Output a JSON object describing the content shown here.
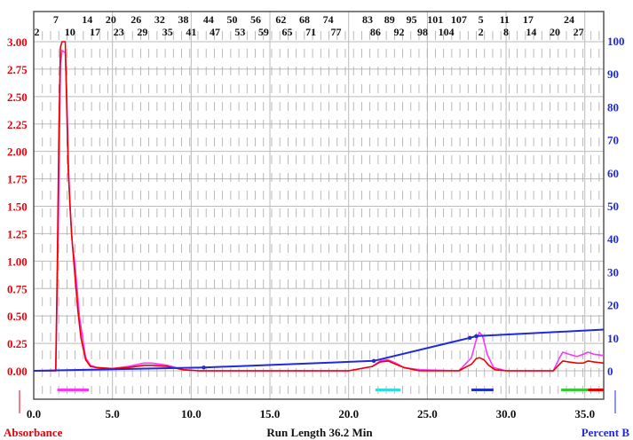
{
  "chart_data": {
    "type": "line",
    "title": "",
    "xlabel": "Run Length 36.2 Min",
    "ylabel_left": "Absorbance",
    "ylabel_right": "Percent B",
    "xlim": [
      0,
      36.2
    ],
    "ylim_left": [
      -0.25,
      3.0
    ],
    "ylim_right": [
      -10.5,
      100
    ],
    "x_ticks": [
      0.0,
      5.0,
      10.0,
      15.0,
      20.0,
      25.0,
      30.0,
      35.0
    ],
    "x_tick_labels": [
      "0.0",
      "5.0",
      "10.0",
      "15.0",
      "20.0",
      "25.0",
      "30.0",
      "35.0"
    ],
    "y_left_ticks": [
      0.0,
      0.25,
      0.5,
      0.75,
      1.0,
      1.25,
      1.5,
      1.75,
      2.0,
      2.25,
      2.5,
      2.75,
      3.0
    ],
    "y_left_tick_labels": [
      "0.00",
      "0.25",
      "0.50",
      "0.75",
      "1.00",
      "1.25",
      "1.50",
      "1.75",
      "2.00",
      "2.25",
      "2.50",
      "2.75",
      "3.00"
    ],
    "y_right_ticks": [
      0,
      10,
      20,
      30,
      40,
      50,
      60,
      70,
      80,
      90,
      100
    ],
    "y_right_tick_labels": [
      "0",
      "10",
      "20",
      "30",
      "40",
      "50",
      "60",
      "70",
      "80",
      "90",
      "100"
    ],
    "fraction_labels_top": [
      {
        "label": "7",
        "x": 1.4
      },
      {
        "label": "14",
        "x": 3.4
      },
      {
        "label": "20",
        "x": 4.9
      },
      {
        "label": "26",
        "x": 6.5
      },
      {
        "label": "32",
        "x": 8.0
      },
      {
        "label": "38",
        "x": 9.5
      },
      {
        "label": "44",
        "x": 11.1
      },
      {
        "label": "50",
        "x": 12.6
      },
      {
        "label": "56",
        "x": 14.1
      },
      {
        "label": "62",
        "x": 15.7
      },
      {
        "label": "68",
        "x": 17.2
      },
      {
        "label": "74",
        "x": 18.7
      },
      {
        "label": "83",
        "x": 21.2
      },
      {
        "label": "89",
        "x": 22.6
      },
      {
        "label": "95",
        "x": 24.0
      },
      {
        "label": "101",
        "x": 25.5
      },
      {
        "label": "107",
        "x": 27.0
      },
      {
        "label": "5",
        "x": 28.4
      },
      {
        "label": "11",
        "x": 29.9
      },
      {
        "label": "17",
        "x": 31.4
      },
      {
        "label": "24",
        "x": 34.0
      }
    ],
    "fraction_labels_bottom": [
      {
        "label": "2",
        "x": 0.2
      },
      {
        "label": "10",
        "x": 2.3
      },
      {
        "label": "17",
        "x": 3.9
      },
      {
        "label": "23",
        "x": 5.4
      },
      {
        "label": "29",
        "x": 6.9
      },
      {
        "label": "35",
        "x": 8.5
      },
      {
        "label": "41",
        "x": 10.0
      },
      {
        "label": "47",
        "x": 11.5
      },
      {
        "label": "53",
        "x": 13.1
      },
      {
        "label": "59",
        "x": 14.6
      },
      {
        "label": "65",
        "x": 16.1
      },
      {
        "label": "71",
        "x": 17.6
      },
      {
        "label": "77",
        "x": 19.2
      },
      {
        "label": "86",
        "x": 21.7
      },
      {
        "label": "92",
        "x": 23.2
      },
      {
        "label": "98",
        "x": 24.7
      },
      {
        "label": "104",
        "x": 26.2
      },
      {
        "label": "2",
        "x": 28.4
      },
      {
        "label": "8",
        "x": 30.0
      },
      {
        "label": "14",
        "x": 31.6
      },
      {
        "label": "20",
        "x": 33.1
      },
      {
        "label": "27",
        "x": 34.6
      }
    ],
    "series": [
      {
        "color": "#ff33ff",
        "axis": "left",
        "x": [
          0,
          1.4,
          1.55,
          1.7,
          1.8,
          2.0,
          2.1,
          2.2,
          2.3,
          2.45,
          2.6,
          2.75,
          2.9,
          3.1,
          3.3,
          3.6,
          4.0,
          5.0,
          6.0,
          7.0,
          7.5,
          8.5,
          9.5,
          10.5,
          15.0,
          20.0,
          21.5,
          22.0,
          22.5,
          23.0,
          23.5,
          24.5,
          27.0,
          27.8,
          28.1,
          28.3,
          28.5,
          28.8,
          29.2,
          30.0,
          33.0,
          33.4,
          33.6,
          34.0,
          34.5,
          34.9,
          35.2,
          35.6,
          36.2
        ],
        "y": [
          0.0,
          0.0,
          1.2,
          2.8,
          2.92,
          2.9,
          2.5,
          1.9,
          1.5,
          1.15,
          1.0,
          0.75,
          0.5,
          0.3,
          0.12,
          0.05,
          0.03,
          0.02,
          0.04,
          0.07,
          0.07,
          0.05,
          0.01,
          0.0,
          0.0,
          0.0,
          0.04,
          0.09,
          0.1,
          0.07,
          0.03,
          0.01,
          0.0,
          0.12,
          0.28,
          0.35,
          0.32,
          0.15,
          0.03,
          0.0,
          0.0,
          0.12,
          0.17,
          0.15,
          0.13,
          0.15,
          0.17,
          0.15,
          0.14
        ]
      },
      {
        "color": "#ee0000",
        "axis": "left",
        "x": [
          0,
          1.4,
          1.5,
          1.6,
          1.7,
          1.8,
          2.0,
          2.1,
          2.2,
          2.4,
          2.6,
          2.8,
          3.0,
          3.3,
          3.6,
          4.0,
          5.0,
          6.0,
          7.0,
          7.5,
          8.5,
          9.5,
          10.5,
          15.0,
          20.0,
          21.5,
          22.0,
          22.5,
          23.0,
          23.5,
          24.5,
          27.0,
          27.8,
          28.1,
          28.3,
          28.6,
          28.9,
          29.3,
          30.0,
          33.0,
          33.4,
          33.6,
          34.0,
          34.5,
          34.9,
          35.2,
          35.6,
          36.2
        ],
        "y": [
          0.0,
          0.0,
          1.0,
          2.2,
          2.95,
          3.0,
          3.0,
          2.4,
          1.8,
          1.25,
          0.9,
          0.55,
          0.3,
          0.1,
          0.04,
          0.03,
          0.02,
          0.03,
          0.05,
          0.05,
          0.04,
          0.01,
          0.0,
          0.0,
          0.0,
          0.04,
          0.08,
          0.09,
          0.06,
          0.03,
          0.0,
          0.0,
          0.06,
          0.11,
          0.12,
          0.1,
          0.05,
          0.01,
          0.0,
          0.0,
          0.06,
          0.09,
          0.08,
          0.07,
          0.07,
          0.09,
          0.08,
          0.07
        ]
      },
      {
        "color": "#1f2ad8",
        "axis": "right",
        "x": [
          0,
          10.8,
          21.6,
          27.7,
          28.1,
          36.2
        ],
        "y": [
          0,
          1,
          3,
          10,
          10.5,
          12.5
        ],
        "markers_x": [
          10.8,
          21.6,
          27.7,
          28.1
        ]
      }
    ],
    "fraction_bars": [
      {
        "x_start": 1.5,
        "x_end": 3.5,
        "color": "#ff33ff"
      },
      {
        "x_start": 21.7,
        "x_end": 23.3,
        "color": "#33dddd"
      },
      {
        "x_start": 27.8,
        "x_end": 29.2,
        "color": "#2230cc"
      },
      {
        "x_start": 33.5,
        "x_end": 35.2,
        "color": "#33cc33"
      },
      {
        "x_start": 35.2,
        "x_end": 36.2,
        "color": "#ee0000"
      }
    ],
    "grid": true,
    "colors": {
      "left_axis": "#e8000b",
      "right_axis": "#1f2ad8",
      "frame": "#555555"
    }
  }
}
